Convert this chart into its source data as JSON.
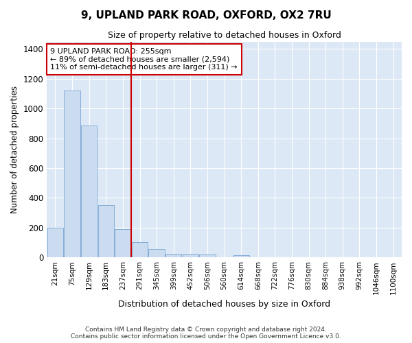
{
  "title": "9, UPLAND PARK ROAD, OXFORD, OX2 7RU",
  "subtitle": "Size of property relative to detached houses in Oxford",
  "xlabel": "Distribution of detached houses by size in Oxford",
  "ylabel": "Number of detached properties",
  "bar_color": "#ccdcf0",
  "bar_edge_color": "#6699cc",
  "background_color": "#dce8f5",
  "grid_color": "#ffffff",
  "categories": [
    "21sqm",
    "75sqm",
    "129sqm",
    "183sqm",
    "237sqm",
    "291sqm",
    "345sqm",
    "399sqm",
    "452sqm",
    "506sqm",
    "560sqm",
    "614sqm",
    "668sqm",
    "722sqm",
    "776sqm",
    "830sqm",
    "884sqm",
    "938sqm",
    "992sqm",
    "1046sqm",
    "1100sqm"
  ],
  "values": [
    198,
    1120,
    885,
    350,
    192,
    100,
    57,
    25,
    22,
    18,
    0,
    13,
    0,
    0,
    0,
    0,
    0,
    0,
    0,
    0,
    0
  ],
  "vline_x": 4.5,
  "vline_color": "#cc0000",
  "annotation_text": "9 UPLAND PARK ROAD: 255sqm\n← 89% of detached houses are smaller (2,594)\n11% of semi-detached houses are larger (311) →",
  "annotation_box_color": "#ffffff",
  "annotation_box_edge": "#cc0000",
  "ylim": [
    0,
    1450
  ],
  "yticks": [
    0,
    200,
    400,
    600,
    800,
    1000,
    1200,
    1400
  ],
  "footnote": "Contains HM Land Registry data © Crown copyright and database right 2024.\nContains public sector information licensed under the Open Government Licence v3.0."
}
